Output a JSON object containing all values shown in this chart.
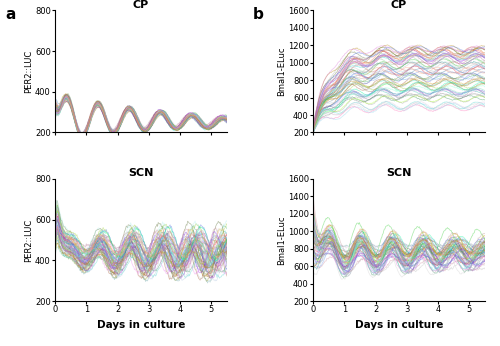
{
  "panel_a_label": "a",
  "panel_b_label": "b",
  "cp_top_title": "CP",
  "scn_top_title": "SCN",
  "cp_bot_title": "CP",
  "scn_bot_title": "SCN",
  "ylabel_a_top": "PER2::LUC",
  "ylabel_a_bot": "PER2::LUC",
  "ylabel_b_top": "Bmal1-ELuc",
  "ylabel_b_bot": "Bmal1-ELuc",
  "xlabel": "Days in culture",
  "t_max": 5.5,
  "dt": 0.02,
  "n_lines": 60,
  "a_cp_ylim": [
    200,
    800
  ],
  "a_scn_ylim": [
    200,
    800
  ],
  "b_cp_ylim": [
    200,
    1600
  ],
  "b_scn_ylim": [
    200,
    1600
  ],
  "a_cp_yticks": [
    200,
    400,
    600,
    800
  ],
  "a_scn_yticks": [
    200,
    400,
    600,
    800
  ],
  "b_cp_yticks": [
    200,
    400,
    600,
    800,
    1000,
    1200,
    1400,
    1600
  ],
  "b_scn_yticks": [
    200,
    400,
    600,
    800,
    1000,
    1200,
    1400,
    1600
  ],
  "xticks": [
    0,
    1,
    2,
    3,
    4,
    5
  ],
  "seed": 42,
  "alpha": 0.4,
  "lw": 0.55
}
